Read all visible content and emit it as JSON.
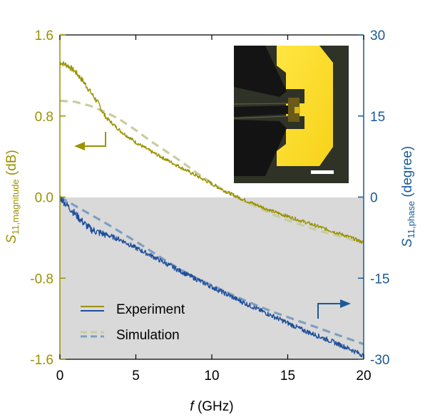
{
  "colors": {
    "magnitude": "#9a9200",
    "magnitude_sim": "#c8cca0",
    "phase": "#1f4f9a",
    "phase_sim": "#7f9fbf",
    "shade": "#d9d9d9",
    "left_axis": "#9a9200",
    "right_axis": "#1a5a96"
  },
  "chart_data": {
    "type": "line",
    "xlabel": {
      "italic": "f",
      "rest": " (GHz)"
    },
    "ylabel_left": {
      "main": "S",
      "sub": "11,magnitude",
      "unit": " (dB)"
    },
    "ylabel_right": {
      "main": "S",
      "sub": "11,phase",
      "unit": " (degree)"
    },
    "xlim": [
      0,
      20
    ],
    "ylim_left": [
      -1.6,
      1.6
    ],
    "ylim_right": [
      -30,
      30
    ],
    "x_ticks": [
      "0",
      "5",
      "10",
      "15",
      "20"
    ],
    "y_ticks_left": [
      "1.6",
      "0.8",
      "0.0",
      "-0.8",
      "-1.6"
    ],
    "y_ticks_right": [
      "30",
      "15",
      "0",
      "-15",
      "-30"
    ],
    "shaded_below_left_y": 0.0,
    "series": [
      {
        "name": "Experiment",
        "axis": "left",
        "style": "solid-noisy",
        "x": [
          0,
          0.5,
          1,
          1.5,
          2,
          2.5,
          3,
          4,
          5,
          6,
          7,
          8,
          9,
          10,
          11,
          12,
          13,
          14,
          15,
          16,
          17,
          18,
          19,
          20
        ],
        "y": [
          1.33,
          1.3,
          1.24,
          1.15,
          1.04,
          0.93,
          0.79,
          0.65,
          0.54,
          0.45,
          0.37,
          0.29,
          0.21,
          0.13,
          0.05,
          -0.02,
          -0.08,
          -0.14,
          -0.19,
          -0.24,
          -0.29,
          -0.34,
          -0.39,
          -0.45
        ]
      },
      {
        "name": "Simulation",
        "axis": "left",
        "style": "dashed",
        "x": [
          0,
          1,
          2,
          3,
          4,
          5,
          6,
          7,
          8,
          9,
          10,
          11,
          12,
          13,
          14,
          15,
          16,
          17,
          18,
          19,
          20
        ],
        "y": [
          0.95,
          0.94,
          0.9,
          0.84,
          0.76,
          0.66,
          0.55,
          0.45,
          0.35,
          0.24,
          0.14,
          0.05,
          -0.03,
          -0.1,
          -0.17,
          -0.23,
          -0.28,
          -0.33,
          -0.37,
          -0.41,
          -0.45
        ]
      },
      {
        "name": "Experiment",
        "axis": "right",
        "style": "solid-noisy",
        "x": [
          0,
          0.5,
          1,
          1.5,
          2,
          2.5,
          3,
          4,
          5,
          6,
          7,
          8,
          9,
          10,
          11,
          12,
          13,
          14,
          15,
          16,
          17,
          18,
          19,
          20
        ],
        "y": [
          0,
          -1.6,
          -3.1,
          -4.6,
          -5.9,
          -6.5,
          -6.9,
          -7.9,
          -9.4,
          -10.8,
          -12.3,
          -13.8,
          -15.2,
          -16.6,
          -18.0,
          -19.4,
          -20.7,
          -22.0,
          -23.3,
          -24.6,
          -25.7,
          -26.8,
          -28.0,
          -29.3
        ]
      },
      {
        "name": "Simulation",
        "axis": "right",
        "style": "dashed",
        "x": [
          0,
          1,
          2,
          3,
          4,
          5,
          6,
          7,
          8,
          9,
          10,
          11,
          12,
          13,
          14,
          15,
          16,
          17,
          18,
          19,
          20
        ],
        "y": [
          0,
          -1.6,
          -3.2,
          -4.8,
          -6.5,
          -8.2,
          -10.0,
          -11.8,
          -13.5,
          -15.0,
          -16.3,
          -17.6,
          -18.9,
          -20.1,
          -21.2,
          -22.2,
          -23.2,
          -24.2,
          -25.2,
          -26.2,
          -27.2
        ]
      }
    ],
    "legend": {
      "placement": "bottom-left",
      "entries": [
        {
          "label": "Experiment",
          "style": "solid"
        },
        {
          "label": "Simulation",
          "style": "dashed"
        }
      ]
    },
    "arrows": [
      {
        "points_to": "left-axis"
      },
      {
        "points_to": "right-axis"
      }
    ],
    "inset": {
      "kind": "micrograph"
    }
  }
}
